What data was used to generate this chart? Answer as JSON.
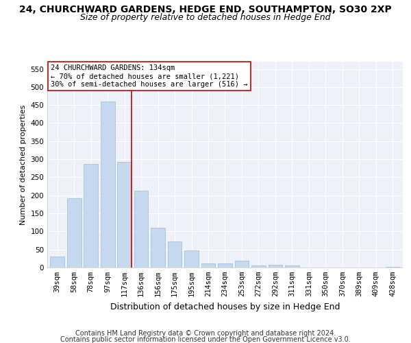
{
  "title": "24, CHURCHWARD GARDENS, HEDGE END, SOUTHAMPTON, SO30 2XP",
  "subtitle": "Size of property relative to detached houses in Hedge End",
  "xlabel": "Distribution of detached houses by size in Hedge End",
  "ylabel": "Number of detached properties",
  "categories": [
    "39sqm",
    "58sqm",
    "78sqm",
    "97sqm",
    "117sqm",
    "136sqm",
    "156sqm",
    "175sqm",
    "195sqm",
    "214sqm",
    "234sqm",
    "253sqm",
    "272sqm",
    "292sqm",
    "311sqm",
    "331sqm",
    "350sqm",
    "370sqm",
    "389sqm",
    "409sqm",
    "428sqm"
  ],
  "values": [
    30,
    191,
    287,
    460,
    293,
    212,
    110,
    73,
    47,
    12,
    11,
    19,
    6,
    7,
    5,
    0,
    0,
    0,
    0,
    0,
    2
  ],
  "bar_color": "#c5d8ed",
  "bar_edge_color": "#9abdd6",
  "vline_x": 4.42,
  "vline_color": "#cc0000",
  "annotation_text": "24 CHURCHWARD GARDENS: 134sqm\n← 70% of detached houses are smaller (1,221)\n30% of semi-detached houses are larger (516) →",
  "annotation_box_color": "#ffffff",
  "annotation_box_edge_color": "#cc0000",
  "ylim": [
    0,
    570
  ],
  "yticks": [
    0,
    50,
    100,
    150,
    200,
    250,
    300,
    350,
    400,
    450,
    500,
    550
  ],
  "footer_line1": "Contains HM Land Registry data © Crown copyright and database right 2024.",
  "footer_line2": "Contains public sector information licensed under the Open Government Licence v3.0.",
  "title_fontsize": 10,
  "subtitle_fontsize": 9,
  "footer_fontsize": 7,
  "ylabel_fontsize": 8,
  "xlabel_fontsize": 9,
  "tick_fontsize": 7.5,
  "annot_fontsize": 7.5
}
